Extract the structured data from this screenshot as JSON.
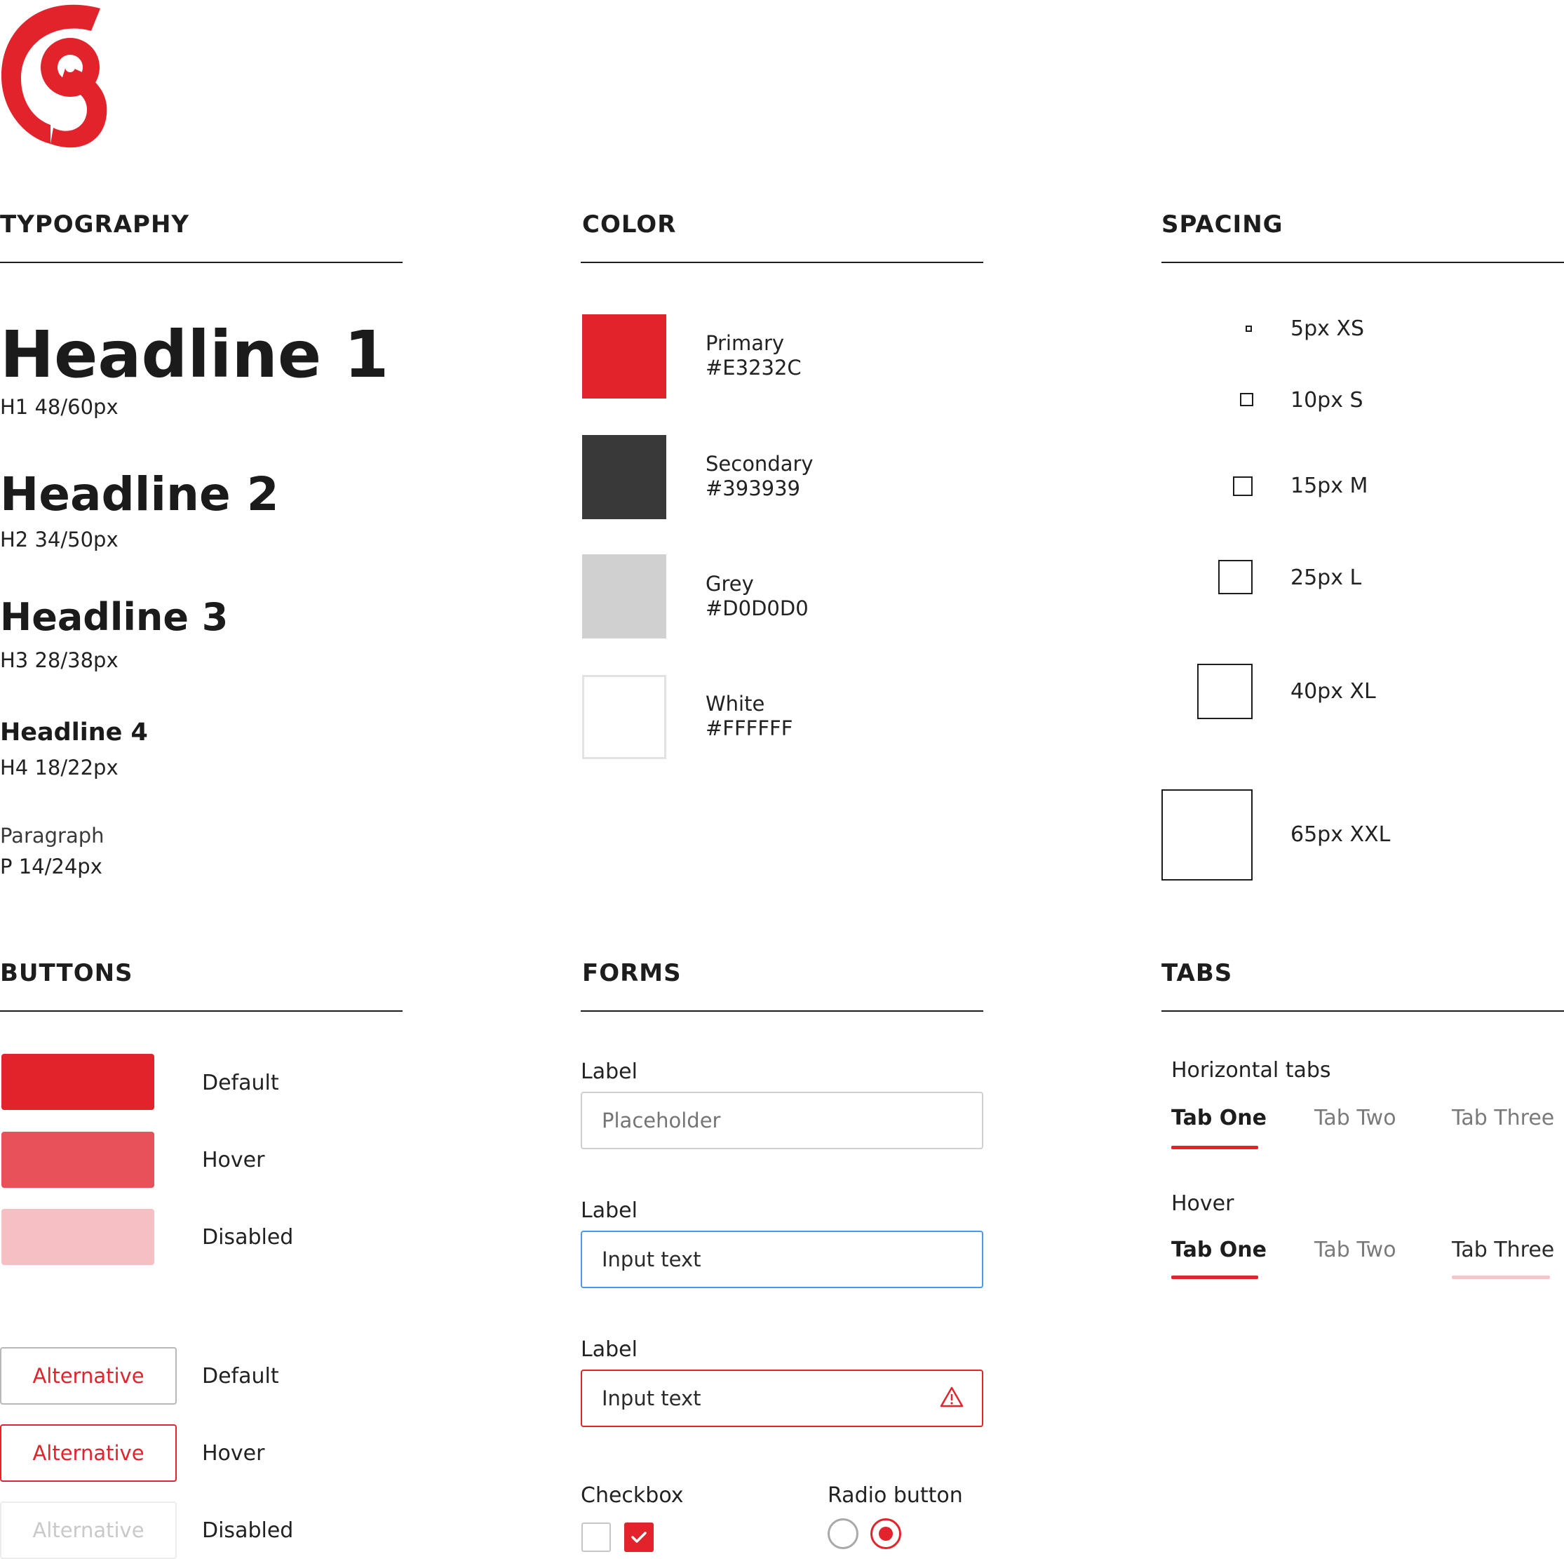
{
  "colors": {
    "primary": "#E3232C",
    "secondary": "#393939",
    "grey": "#D0D0D0",
    "white": "#FFFFFF",
    "hover": "#E8505A",
    "disabled": "#F5BFC3",
    "input_focus": "#4A98E8"
  },
  "logo": {
    "icon": "brand-logo-icon"
  },
  "typography": {
    "title": "TYPOGRAPHY",
    "h1": {
      "text": "Headline 1",
      "spec": "H1 48/60px"
    },
    "h2": {
      "text": "Headline 2",
      "spec": "H2 34/50px"
    },
    "h3": {
      "text": "Headline 3",
      "spec": "H3 28/38px"
    },
    "h4": {
      "text": "Headline 4",
      "spec": "H4 18/22px"
    },
    "p": {
      "text": "Paragraph",
      "spec": "P 14/24px"
    }
  },
  "color_section": {
    "title": "COLOR",
    "swatches": [
      {
        "name": "Primary",
        "hex": "#E3232C"
      },
      {
        "name": "Secondary",
        "hex": "#393939"
      },
      {
        "name": "Grey",
        "hex": "#D0D0D0"
      },
      {
        "name": "White",
        "hex": "#FFFFFF"
      }
    ]
  },
  "spacing": {
    "title": "SPACING",
    "items": [
      {
        "label": "5px XS"
      },
      {
        "label": "10px S"
      },
      {
        "label": "15px M"
      },
      {
        "label": "25px L"
      },
      {
        "label": "40px XL"
      },
      {
        "label": "65px XXL"
      }
    ]
  },
  "buttons": {
    "title": "BUTTONS",
    "states": [
      "Default",
      "Hover",
      "Disabled"
    ],
    "alt_label": "Alternative"
  },
  "forms": {
    "title": "FORMS",
    "label": "Label",
    "placeholder": "Placeholder",
    "input_value": "Input text",
    "checkbox_label": "Checkbox",
    "radio_label": "Radio button",
    "warning_icon": "warning-icon",
    "check_icon": "checkmark-icon"
  },
  "tabs": {
    "title": "TABS",
    "horizontal_label": "Horizontal tabs",
    "hover_label": "Hover",
    "items": [
      "Tab One",
      "Tab Two",
      "Tab Three"
    ]
  }
}
